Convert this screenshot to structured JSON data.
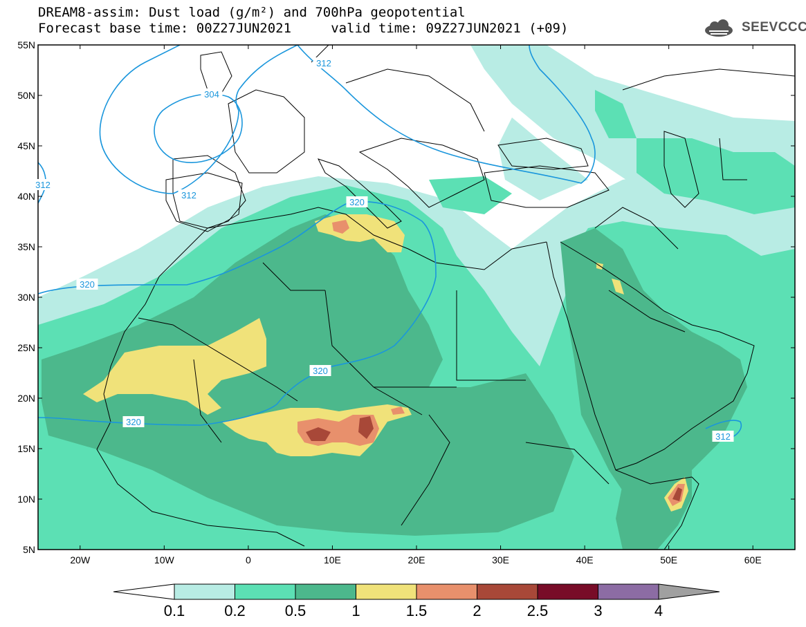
{
  "title": {
    "line1": "DREAM8-assim: Dust load (g/m²) and 700hPa geopotential",
    "line2": "Forecast base time: 00Z27JUN2021     valid time: 09Z27JUN2021 (+09)"
  },
  "logo": {
    "text": "SEEVCCC",
    "icon": "cloud-icon"
  },
  "axes": {
    "lat_ticks": [
      "55N",
      "50N",
      "45N",
      "40N",
      "35N",
      "30N",
      "25N",
      "20N",
      "15N",
      "10N",
      "5N"
    ],
    "lon_ticks": [
      "20W",
      "10W",
      "0",
      "10E",
      "20E",
      "30E",
      "40E",
      "50E",
      "60E"
    ],
    "lat_range": [
      5,
      55
    ],
    "lon_range": [
      -25,
      65
    ]
  },
  "colorbar": {
    "labels": [
      "0.1",
      "0.2",
      "0.5",
      "1",
      "1.5",
      "2",
      "2.5",
      "3",
      "4"
    ],
    "colors": [
      "#b8ece4",
      "#5ce0b4",
      "#4cb88c",
      "#f0e27a",
      "#e8906c",
      "#a84838",
      "#780c28",
      "#8c6ca4"
    ],
    "under_color": "#ffffff",
    "over_color": "#a0a0a0"
  },
  "contours": [
    {
      "value": "312"
    },
    {
      "value": "304"
    },
    {
      "value": "312"
    },
    {
      "value": "320"
    },
    {
      "value": "320"
    },
    {
      "value": "320"
    },
    {
      "value": "320"
    },
    {
      "value": "312"
    },
    {
      "value": "312"
    }
  ],
  "colors": {
    "contour": "#1a96dc",
    "border": "#000000"
  }
}
